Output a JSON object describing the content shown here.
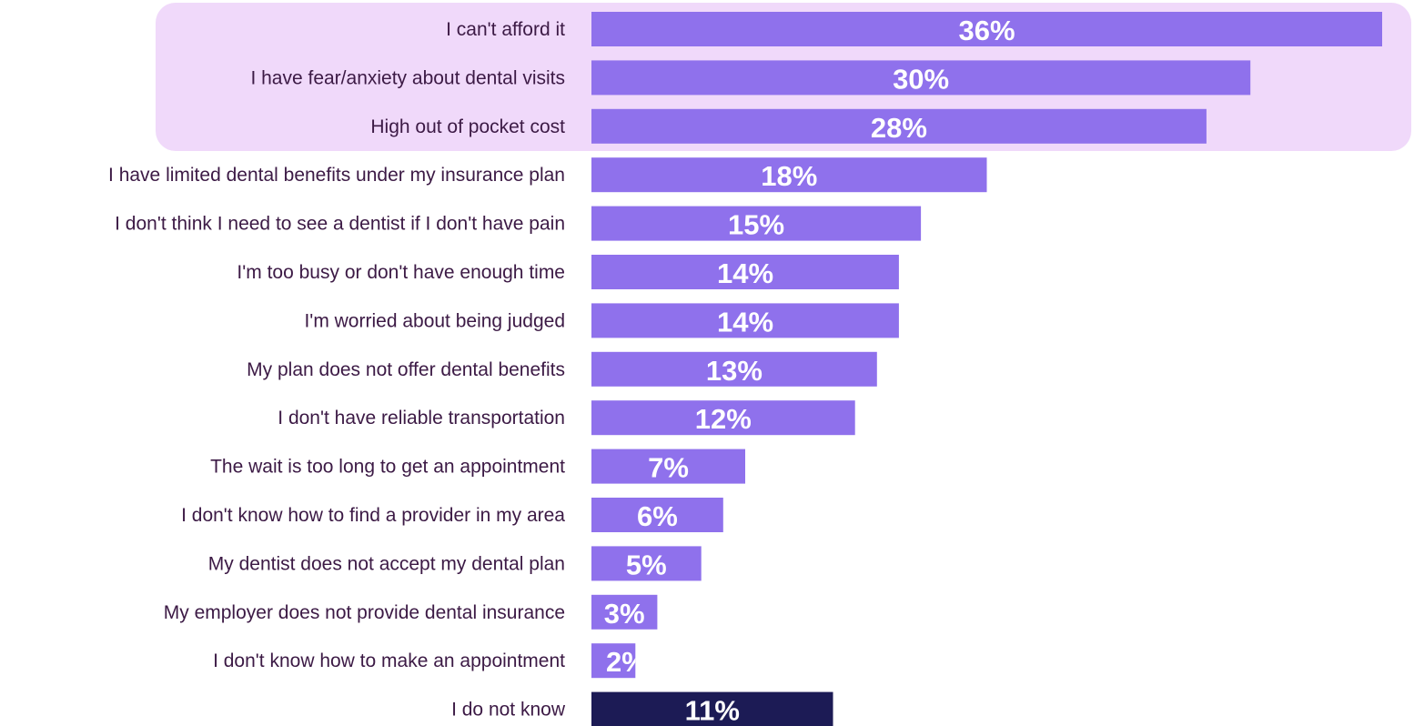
{
  "chart_data": {
    "type": "bar",
    "orientation": "horizontal",
    "categories": [
      "I can't afford it",
      "I have fear/anxiety about dental visits",
      "High out of pocket cost",
      "I have limited dental benefits under my insurance plan",
      "I don't think I need to see a dentist if I don't have pain",
      "I'm too busy or don't have enough time",
      "I'm worried about being judged",
      "My plan does not offer dental benefits",
      "I don't have reliable transportation",
      "The wait is too long to get an appointment",
      "I don't know how to find a provider in my area",
      "My dentist does not accept my dental plan",
      "My employer does not provide dental insurance",
      "I don't know how to make an appointment",
      "I do not know"
    ],
    "values": [
      36,
      30,
      28,
      18,
      15,
      14,
      14,
      13,
      12,
      7,
      6,
      5,
      3,
      2,
      11
    ],
    "value_labels": [
      "36%",
      "30%",
      "28%",
      "18%",
      "15%",
      "14%",
      "14%",
      "13%",
      "12%",
      "7%",
      "6%",
      "5%",
      "3%",
      "2%",
      "11%"
    ],
    "highlighted_top_n": 3,
    "colors": {
      "bar": "#8f71ec",
      "bar_last": "#1c1b55",
      "highlight_panel": "#f0d9fa",
      "label_text": "#3c1a45",
      "value_text": "#ffffff"
    },
    "title": "",
    "xlabel": "",
    "ylabel": "",
    "xlim": [
      0,
      36
    ],
    "grid": false,
    "legend": "none"
  }
}
